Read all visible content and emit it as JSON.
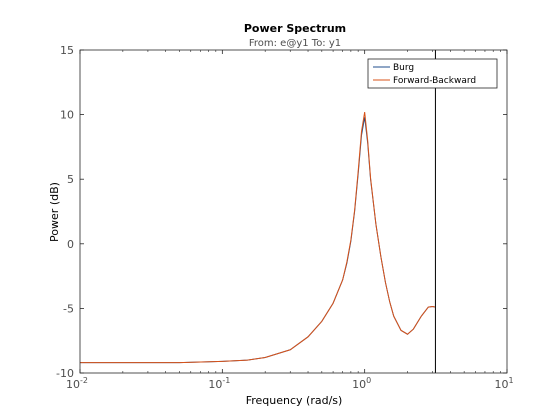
{
  "chart_data": {
    "type": "line",
    "title": "Power Spectrum",
    "subtitle": "From: e@y1  To: y1",
    "xlabel": "Frequency  (rad/s)",
    "ylabel": "Power (dB)",
    "xscale": "log",
    "xlim": [
      0.01,
      10
    ],
    "ylim": [
      -10,
      15
    ],
    "xticks": [
      {
        "value": 0.01,
        "base": "10",
        "exp": "-2"
      },
      {
        "value": 0.1,
        "base": "10",
        "exp": "-1"
      },
      {
        "value": 1,
        "base": "10",
        "exp": "0"
      },
      {
        "value": 10,
        "base": "10",
        "exp": "1"
      }
    ],
    "yticks": [
      -10,
      -5,
      0,
      5,
      10,
      15
    ],
    "grid": false,
    "legend_position": "top-right",
    "nyquist_line_x": 3.1416,
    "x": [
      0.01,
      0.02,
      0.05,
      0.1,
      0.15,
      0.2,
      0.3,
      0.4,
      0.5,
      0.6,
      0.7,
      0.75,
      0.8,
      0.85,
      0.9,
      0.95,
      1.0,
      1.05,
      1.1,
      1.2,
      1.3,
      1.4,
      1.5,
      1.6,
      1.8,
      2.0,
      2.2,
      2.5,
      2.8,
      3.0,
      3.1416
    ],
    "series": [
      {
        "name": "Burg",
        "color": "#1f4e8c",
        "values": [
          -9.2,
          -9.2,
          -9.2,
          -9.1,
          -9.0,
          -8.8,
          -8.2,
          -7.2,
          -6.0,
          -4.6,
          -2.8,
          -1.5,
          0.2,
          2.5,
          5.4,
          8.4,
          9.8,
          7.8,
          5.0,
          1.5,
          -1.0,
          -3.0,
          -4.5,
          -5.6,
          -6.7,
          -7.0,
          -6.6,
          -5.6,
          -4.9,
          -4.85,
          -4.9
        ]
      },
      {
        "name": "Forward-Backward",
        "color": "#d95319",
        "values": [
          -9.2,
          -9.2,
          -9.2,
          -9.1,
          -9.0,
          -8.8,
          -8.2,
          -7.2,
          -6.0,
          -4.6,
          -2.8,
          -1.4,
          0.3,
          2.6,
          5.6,
          8.7,
          10.2,
          8.0,
          5.1,
          1.5,
          -1.0,
          -3.0,
          -4.5,
          -5.6,
          -6.7,
          -7.0,
          -6.6,
          -5.6,
          -4.9,
          -4.85,
          -4.9
        ]
      }
    ]
  }
}
